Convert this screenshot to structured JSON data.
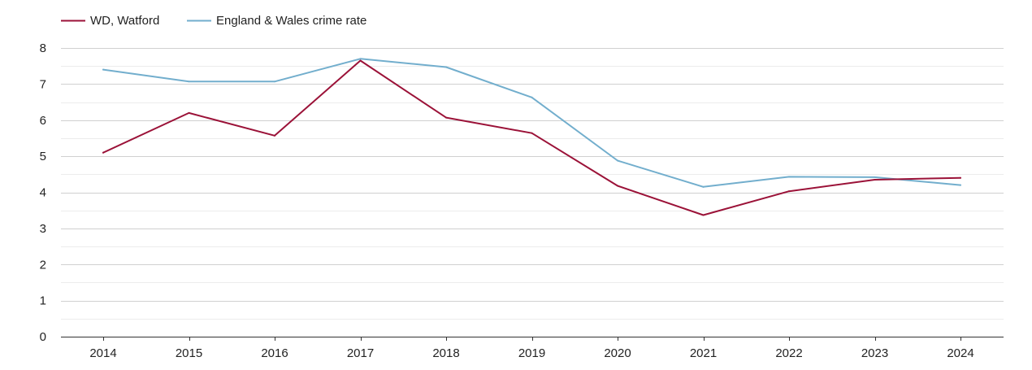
{
  "chart_data": {
    "type": "line",
    "title": "",
    "xlabel": "",
    "ylabel": "",
    "x": [
      "2014",
      "2015",
      "2016",
      "2017",
      "2018",
      "2019",
      "2020",
      "2021",
      "2022",
      "2023",
      "2024"
    ],
    "ylim": [
      0,
      8
    ],
    "yticks": [
      0,
      1,
      2,
      3,
      4,
      5,
      6,
      7,
      8
    ],
    "grid": true,
    "legend_position": "top-left",
    "series": [
      {
        "name": "WD, Watford",
        "color": "#9b1238",
        "values": [
          5.1,
          6.2,
          5.57,
          7.65,
          6.07,
          5.64,
          4.18,
          3.37,
          4.03,
          4.35,
          4.4
        ]
      },
      {
        "name": "England & Wales crime rate",
        "color": "#72aecd",
        "values": [
          7.4,
          7.07,
          7.07,
          7.7,
          7.47,
          6.63,
          4.88,
          4.15,
          4.43,
          4.42,
          4.2
        ]
      }
    ]
  }
}
